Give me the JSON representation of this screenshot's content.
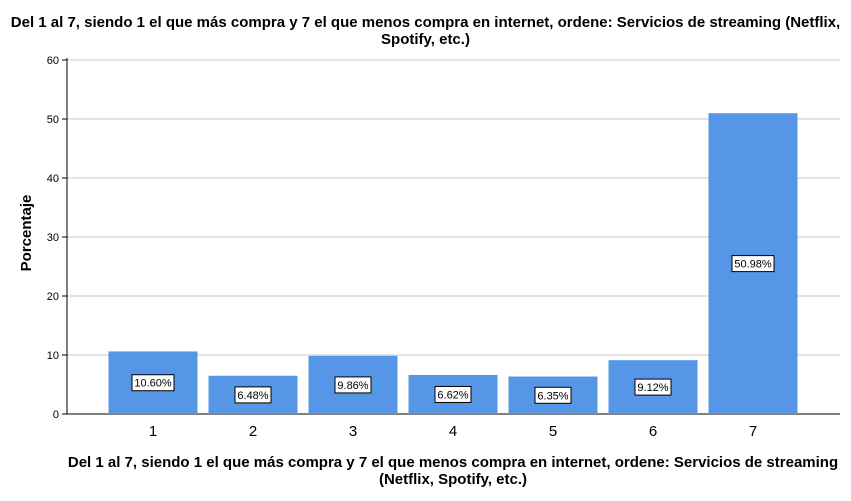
{
  "chart_data": {
    "type": "bar",
    "title": "Del 1 al 7, siendo 1 el que más compra y 7 el que menos compra en internet, ordene: Servicios de streaming (Netflix, Spotify, etc.)",
    "xlabel": "Del 1 al 7, siendo 1 el que más compra y 7 el que menos compra en internet, ordene: Servicios de streaming (Netflix, Spotify, etc.)",
    "ylabel": "Porcentaje",
    "categories": [
      "1",
      "2",
      "3",
      "4",
      "5",
      "6",
      "7"
    ],
    "values": [
      10.6,
      6.48,
      9.86,
      6.62,
      6.35,
      9.12,
      50.98
    ],
    "data_labels": [
      "10.60%",
      "6.48%",
      "9.86%",
      "6.62%",
      "6.35%",
      "9.12%",
      "50.98%"
    ],
    "ylim": [
      0,
      60
    ],
    "yticks": [
      0,
      10,
      20,
      30,
      40,
      50,
      60
    ],
    "grid": true,
    "bar_color": "#5596e6"
  }
}
